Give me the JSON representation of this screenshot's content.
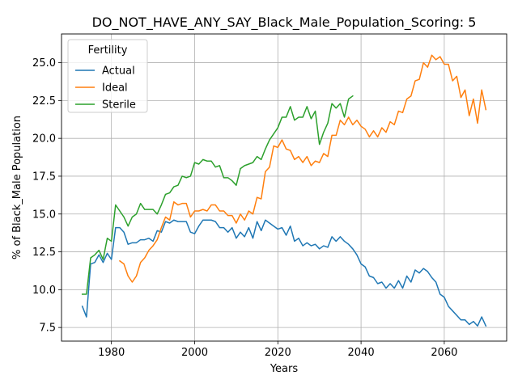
{
  "chart_data": {
    "type": "line",
    "title": "DO_NOT_HAVE_ANY_SAY_Black_Male_Population_Scoring: 5",
    "xlabel": "Years",
    "ylabel": "% of Black_Male Population",
    "xlim": [
      1968,
      2075
    ],
    "ylim": [
      6.6,
      26.9
    ],
    "xticks": [
      1980,
      2000,
      2020,
      2040,
      2060
    ],
    "yticks": [
      7.5,
      10.0,
      12.5,
      15.0,
      17.5,
      20.0,
      22.5,
      25.0
    ],
    "xtick_labels": [
      "1980",
      "2000",
      "2020",
      "2040",
      "2060"
    ],
    "ytick_labels": [
      "7.5",
      "10.0",
      "12.5",
      "15.0",
      "17.5",
      "20.0",
      "22.5",
      "25.0"
    ],
    "grid": true,
    "legend": {
      "title": "Fertility",
      "placement": "upper-left"
    },
    "series": [
      {
        "name": "Actual",
        "color": "#1f77b4",
        "x": [
          1973,
          1974,
          1975,
          1976,
          1977,
          1978,
          1979,
          1980,
          1981,
          1982,
          1983,
          1984,
          1985,
          1986,
          1987,
          1988,
          1989,
          1990,
          1991,
          1992,
          1993,
          1994,
          1995,
          1996,
          1997,
          1998,
          1999,
          2000,
          2001,
          2002,
          2003,
          2004,
          2005,
          2006,
          2007,
          2008,
          2009,
          2010,
          2011,
          2012,
          2013,
          2014,
          2015,
          2016,
          2017,
          2018,
          2019,
          2020,
          2021,
          2022,
          2023,
          2024,
          2025,
          2026,
          2027,
          2028,
          2029,
          2030,
          2031,
          2032,
          2033,
          2034,
          2035,
          2036,
          2037,
          2038,
          2039,
          2040,
          2041,
          2042,
          2043,
          2044,
          2045,
          2046,
          2047,
          2048,
          2049,
          2050,
          2051,
          2052,
          2053,
          2054,
          2055,
          2056,
          2057,
          2058,
          2059,
          2060,
          2061,
          2062,
          2063,
          2064,
          2065,
          2066,
          2067,
          2068,
          2069,
          2070
        ],
        "y": [
          8.9,
          8.2,
          11.7,
          11.8,
          12.3,
          11.8,
          12.4,
          12.0,
          14.1,
          14.1,
          13.8,
          13.0,
          13.1,
          13.1,
          13.3,
          13.3,
          13.4,
          13.2,
          13.9,
          13.8,
          14.5,
          14.4,
          14.6,
          14.5,
          14.5,
          14.5,
          13.8,
          13.7,
          14.2,
          14.6,
          14.6,
          14.6,
          14.5,
          14.1,
          14.1,
          13.8,
          14.1,
          13.4,
          13.8,
          13.5,
          14.1,
          13.4,
          14.5,
          13.9,
          14.6,
          14.4,
          14.2,
          14.0,
          14.1,
          13.6,
          14.2,
          13.2,
          13.4,
          12.9,
          13.1,
          12.9,
          13.0,
          12.7,
          12.9,
          12.8,
          13.5,
          13.2,
          13.5,
          13.2,
          13.0,
          12.7,
          12.3,
          11.7,
          11.5,
          10.9,
          10.8,
          10.4,
          10.5,
          10.1,
          10.4,
          10.1,
          10.6,
          10.1,
          10.9,
          10.5,
          11.3,
          11.1,
          11.4,
          11.2,
          10.8,
          10.5,
          9.7,
          9.5,
          8.9,
          8.6,
          8.3,
          8.0,
          8.0,
          7.7,
          7.9,
          7.6,
          8.2,
          7.6
        ]
      },
      {
        "name": "Ideal",
        "color": "#ff7f0e",
        "x": [
          1982,
          1983,
          1984,
          1985,
          1986,
          1987,
          1988,
          1989,
          1990,
          1991,
          1992,
          1993,
          1994,
          1995,
          1996,
          1997,
          1998,
          1999,
          2000,
          2001,
          2002,
          2003,
          2004,
          2005,
          2006,
          2007,
          2008,
          2009,
          2010,
          2011,
          2012,
          2013,
          2014,
          2015,
          2016,
          2017,
          2018,
          2019,
          2020,
          2021,
          2022,
          2023,
          2024,
          2025,
          2026,
          2027,
          2028,
          2029,
          2030,
          2031,
          2032,
          2033,
          2034,
          2035,
          2036,
          2037,
          2038,
          2039,
          2040,
          2041,
          2042,
          2043,
          2044,
          2045,
          2046,
          2047,
          2048,
          2049,
          2050,
          2051,
          2052,
          2053,
          2054,
          2055,
          2056,
          2057,
          2058,
          2059,
          2060,
          2061,
          2062,
          2063,
          2064,
          2065,
          2066,
          2067,
          2068,
          2069,
          2070
        ],
        "y": [
          11.9,
          11.7,
          10.9,
          10.5,
          10.9,
          11.8,
          12.1,
          12.6,
          12.9,
          13.3,
          14.1,
          14.8,
          14.6,
          15.8,
          15.6,
          15.7,
          15.7,
          14.8,
          15.2,
          15.2,
          15.3,
          15.2,
          15.6,
          15.6,
          15.2,
          15.2,
          14.9,
          14.9,
          14.4,
          15.0,
          14.6,
          15.2,
          15.0,
          16.1,
          16.0,
          17.8,
          18.1,
          19.5,
          19.4,
          19.9,
          19.3,
          19.2,
          18.6,
          18.8,
          18.4,
          18.8,
          18.2,
          18.5,
          18.4,
          19.0,
          18.8,
          20.2,
          20.2,
          21.2,
          20.9,
          21.4,
          20.9,
          21.2,
          20.8,
          20.6,
          20.1,
          20.5,
          20.1,
          20.7,
          20.4,
          21.1,
          20.9,
          21.8,
          21.7,
          22.6,
          22.8,
          23.8,
          23.9,
          25.0,
          24.7,
          25.5,
          25.2,
          25.4,
          24.9,
          24.9,
          23.8,
          24.1,
          22.7,
          23.2,
          21.5,
          22.6,
          21.0,
          23.2,
          21.9
        ]
      },
      {
        "name": "Sterile",
        "color": "#2ca02c",
        "x": [
          1973,
          1974,
          1975,
          1976,
          1977,
          1978,
          1979,
          1980,
          1981,
          1982,
          1983,
          1984,
          1985,
          1986,
          1987,
          1988,
          1989,
          1990,
          1991,
          1992,
          1993,
          1994,
          1995,
          1996,
          1997,
          1998,
          1999,
          2000,
          2001,
          2002,
          2003,
          2004,
          2005,
          2006,
          2007,
          2008,
          2009,
          2010,
          2011,
          2012,
          2013,
          2014,
          2015,
          2016,
          2017,
          2018,
          2019,
          2020,
          2021,
          2022,
          2023,
          2024,
          2025,
          2026,
          2027,
          2028,
          2029,
          2030,
          2031,
          2032,
          2033,
          2034,
          2035,
          2036,
          2037,
          2038
        ],
        "y": [
          9.7,
          9.7,
          12.1,
          12.3,
          12.6,
          12.0,
          13.4,
          13.2,
          15.6,
          15.2,
          14.8,
          14.2,
          14.8,
          15.0,
          15.7,
          15.3,
          15.3,
          15.3,
          15.0,
          15.6,
          16.3,
          16.4,
          16.8,
          16.9,
          17.5,
          17.4,
          17.5,
          18.4,
          18.3,
          18.6,
          18.5,
          18.5,
          18.1,
          18.2,
          17.4,
          17.4,
          17.2,
          16.9,
          18.0,
          18.2,
          18.3,
          18.4,
          18.8,
          18.6,
          19.3,
          19.9,
          20.3,
          20.7,
          21.4,
          21.4,
          22.1,
          21.2,
          21.4,
          21.4,
          22.1,
          21.3,
          21.8,
          19.6,
          20.4,
          21.0,
          22.3,
          22.0,
          22.3,
          21.4,
          22.6,
          22.8
        ]
      }
    ]
  }
}
